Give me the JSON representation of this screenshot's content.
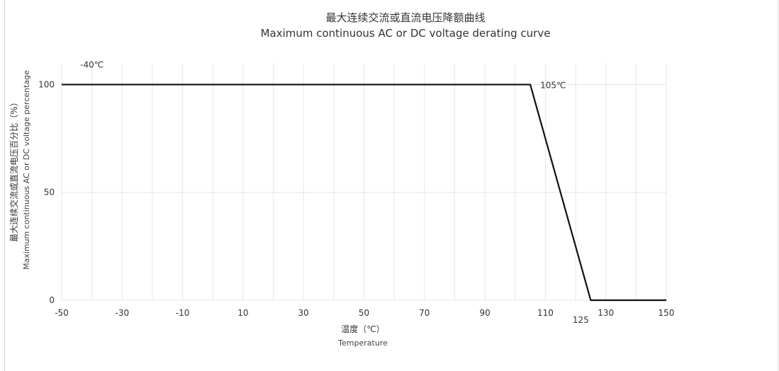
{
  "chart_data": {
    "type": "line",
    "title": "最大连续交流或直流电压降额曲线",
    "subtitle": "Maximum continuous AC or DC voltage derating curve",
    "xlabel": "温度（℃）",
    "xlabel_en": "Temperature",
    "ylabel": "最大连续交流或直流电压百分比（%）",
    "ylabel_en": "Maximum continuous AC or DC voltage percentage",
    "xlim": [
      -50,
      150
    ],
    "ylim": [
      0,
      100
    ],
    "x_ticks": [
      -50,
      -30,
      -10,
      10,
      30,
      50,
      70,
      90,
      110,
      130,
      150
    ],
    "y_ticks": [
      0,
      50,
      100
    ],
    "grid": true,
    "legend": "none",
    "series": [
      {
        "x": [
          -50,
          105,
          125,
          150
        ],
        "y": [
          100,
          100,
          0,
          0
        ],
        "color": "#111111"
      }
    ],
    "annotations": [
      {
        "text": "-40℃",
        "x": -40,
        "y": 100
      },
      {
        "text": "105℃",
        "x": 105,
        "y": 100
      },
      {
        "text": "125",
        "x": 125,
        "y": 0
      }
    ]
  }
}
